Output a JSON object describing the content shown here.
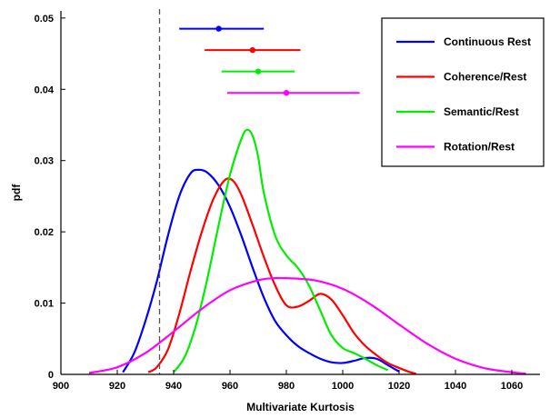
{
  "chart_data": {
    "type": "line",
    "xlabel": "Multivariate Kurtosis",
    "ylabel": "pdf",
    "xlim": [
      900,
      1070
    ],
    "ylim": [
      0,
      0.051
    ],
    "x_ticks": [
      900,
      920,
      940,
      960,
      980,
      1000,
      1020,
      1040,
      1060
    ],
    "y_ticks": [
      0,
      0.01,
      0.02,
      0.03,
      0.04,
      0.05
    ],
    "y_tick_labels": [
      "0",
      "0.01",
      "0.02",
      "0.03",
      "0.04",
      "0.05"
    ],
    "grid": false,
    "legend_position": "top-right",
    "reference_line": {
      "x": 935,
      "style": "dashed",
      "color": "#555555"
    },
    "series": [
      {
        "name": "Continuous Rest",
        "color": "#0000ff",
        "points": [
          [
            922,
            0.0003
          ],
          [
            926,
            0.003
          ],
          [
            930,
            0.0075
          ],
          [
            934,
            0.013
          ],
          [
            938,
            0.0195
          ],
          [
            942,
            0.025
          ],
          [
            946,
            0.0282
          ],
          [
            949,
            0.0287
          ],
          [
            952,
            0.0283
          ],
          [
            956,
            0.0265
          ],
          [
            960,
            0.0235
          ],
          [
            964,
            0.0195
          ],
          [
            968,
            0.015
          ],
          [
            972,
            0.0108
          ],
          [
            976,
            0.0075
          ],
          [
            980,
            0.0055
          ],
          [
            984,
            0.004
          ],
          [
            988,
            0.003
          ],
          [
            992,
            0.0022
          ],
          [
            996,
            0.0017
          ],
          [
            1000,
            0.0016
          ],
          [
            1004,
            0.0019
          ],
          [
            1008,
            0.0023
          ],
          [
            1012,
            0.0022
          ],
          [
            1016,
            0.0013
          ],
          [
            1020,
            0.0004
          ]
        ],
        "interval": {
          "center": 956,
          "low": 942,
          "high": 972,
          "y": 0.0485
        }
      },
      {
        "name": "Coherence/Rest",
        "color": "#ff0000",
        "points": [
          [
            931,
            0.0003
          ],
          [
            934,
            0.001
          ],
          [
            938,
            0.0035
          ],
          [
            942,
            0.0085
          ],
          [
            946,
            0.0145
          ],
          [
            950,
            0.02
          ],
          [
            954,
            0.0245
          ],
          [
            958,
            0.0272
          ],
          [
            961,
            0.0272
          ],
          [
            964,
            0.0252
          ],
          [
            968,
            0.021
          ],
          [
            972,
            0.0165
          ],
          [
            976,
            0.0125
          ],
          [
            980,
            0.0097
          ],
          [
            984,
            0.0095
          ],
          [
            988,
            0.0103
          ],
          [
            992,
            0.0113
          ],
          [
            996,
            0.0105
          ],
          [
            1000,
            0.0083
          ],
          [
            1004,
            0.0058
          ],
          [
            1008,
            0.004
          ],
          [
            1012,
            0.0027
          ],
          [
            1016,
            0.0016
          ],
          [
            1020,
            0.0009
          ],
          [
            1024,
            0.0003
          ],
          [
            1026,
            0.0001
          ]
        ],
        "interval": {
          "center": 968,
          "low": 951,
          "high": 985,
          "y": 0.0455
        }
      },
      {
        "name": "Semantic/Rest",
        "color": "#00ee00",
        "points": [
          [
            940,
            0.0003
          ],
          [
            944,
            0.0025
          ],
          [
            948,
            0.007
          ],
          [
            952,
            0.0135
          ],
          [
            956,
            0.021
          ],
          [
            960,
            0.028
          ],
          [
            964,
            0.033
          ],
          [
            966,
            0.0343
          ],
          [
            968,
            0.0335
          ],
          [
            970,
            0.0305
          ],
          [
            972,
            0.0255
          ],
          [
            976,
            0.0195
          ],
          [
            980,
            0.0167
          ],
          [
            984,
            0.015
          ],
          [
            988,
            0.0125
          ],
          [
            992,
            0.009
          ],
          [
            996,
            0.0055
          ],
          [
            1000,
            0.0037
          ],
          [
            1004,
            0.003
          ],
          [
            1008,
            0.0022
          ],
          [
            1012,
            0.0013
          ],
          [
            1016,
            0.0006
          ]
        ],
        "interval": {
          "center": 970,
          "low": 957,
          "high": 983,
          "y": 0.0425
        }
      },
      {
        "name": "Rotation/Rest",
        "color": "#ff00ff",
        "points": [
          [
            910,
            0.0002
          ],
          [
            920,
            0.001
          ],
          [
            930,
            0.003
          ],
          [
            940,
            0.006
          ],
          [
            950,
            0.0092
          ],
          [
            960,
            0.0118
          ],
          [
            970,
            0.0132
          ],
          [
            976,
            0.0135
          ],
          [
            980,
            0.0135
          ],
          [
            990,
            0.0132
          ],
          [
            1000,
            0.012
          ],
          [
            1010,
            0.0098
          ],
          [
            1020,
            0.007
          ],
          [
            1030,
            0.0043
          ],
          [
            1040,
            0.0022
          ],
          [
            1050,
            0.0009
          ],
          [
            1060,
            0.0003
          ],
          [
            1065,
            0.0001
          ]
        ],
        "interval": {
          "center": 980,
          "low": 959,
          "high": 1006,
          "y": 0.0395
        }
      }
    ]
  }
}
